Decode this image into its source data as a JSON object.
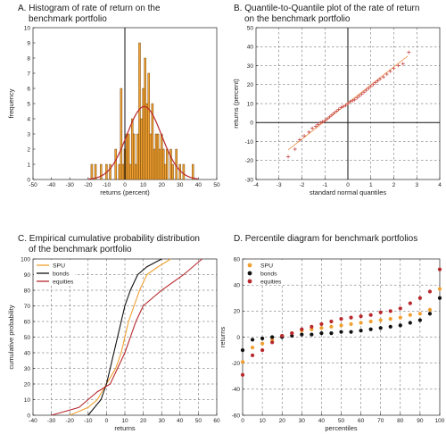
{
  "colors": {
    "bar_fill": "#f0a030",
    "bar_stroke": "#5a3200",
    "normal_curve": "#b8282d",
    "qq_marker": "#c43a3a",
    "qq_line": "#f0a060",
    "spu": "#f0a030",
    "bonds": "#111111",
    "equities": "#b8282d"
  },
  "chart_data": [
    {
      "panel": "A",
      "type": "bar",
      "title_lines": [
        "A. Histogram of rate of return on the",
        "benchmark portfolio"
      ],
      "xlabel": "returns (percent)",
      "ylabel": "frequency",
      "xlim": [
        -50,
        50
      ],
      "ylim": [
        0,
        10
      ],
      "x_ticks": [
        -50,
        -40,
        -30,
        -20,
        -10,
        0,
        10,
        20,
        30,
        40,
        50
      ],
      "y_ticks": [
        0,
        1,
        2,
        3,
        4,
        5,
        6,
        7,
        8,
        9,
        10
      ],
      "grid": false,
      "bins": [
        {
          "x": -18,
          "count": 1
        },
        {
          "x": -16,
          "count": 1
        },
        {
          "x": -13,
          "count": 1
        },
        {
          "x": -10,
          "count": 1
        },
        {
          "x": -8,
          "count": 1
        },
        {
          "x": -5,
          "count": 2
        },
        {
          "x": -3,
          "count": 1
        },
        {
          "x": -2,
          "count": 6
        },
        {
          "x": -1,
          "count": 1
        },
        {
          "x": 0,
          "count": 2
        },
        {
          "x": 1,
          "count": 3
        },
        {
          "x": 2,
          "count": 3
        },
        {
          "x": 3,
          "count": 1
        },
        {
          "x": 4,
          "count": 4
        },
        {
          "x": 5,
          "count": 3
        },
        {
          "x": 6,
          "count": 1
        },
        {
          "x": 7,
          "count": 3
        },
        {
          "x": 8,
          "count": 9
        },
        {
          "x": 9,
          "count": 4
        },
        {
          "x": 10,
          "count": 6
        },
        {
          "x": 11,
          "count": 8
        },
        {
          "x": 12,
          "count": 5
        },
        {
          "x": 13,
          "count": 7
        },
        {
          "x": 14,
          "count": 3
        },
        {
          "x": 15,
          "count": 5
        },
        {
          "x": 16,
          "count": 2
        },
        {
          "x": 17,
          "count": 3
        },
        {
          "x": 18,
          "count": 3
        },
        {
          "x": 19,
          "count": 2
        },
        {
          "x": 20,
          "count": 3
        },
        {
          "x": 21,
          "count": 2
        },
        {
          "x": 22,
          "count": 1
        },
        {
          "x": 23,
          "count": 2
        },
        {
          "x": 25,
          "count": 2
        },
        {
          "x": 26,
          "count": 1
        },
        {
          "x": 28,
          "count": 2
        },
        {
          "x": 30,
          "count": 1
        },
        {
          "x": 32,
          "count": 1
        },
        {
          "x": 37,
          "count": 1
        }
      ],
      "normal_fit": {
        "mean": 10.5,
        "sd": 9.5,
        "peak": 4.8,
        "x_range": [
          -20,
          40
        ]
      }
    },
    {
      "panel": "B",
      "type": "scatter",
      "title_lines": [
        "B. Quantile-to-Quantile plot of the rate of return",
        "on the benchmark portfolio"
      ],
      "xlabel": "standard normal quantiles",
      "ylabel": "returns (percent)",
      "xlim": [
        -4,
        4
      ],
      "ylim": [
        -30,
        50
      ],
      "x_ticks": [
        -4,
        -3,
        -2,
        -1,
        0,
        1,
        2,
        3,
        4
      ],
      "y_ticks": [
        -30,
        -20,
        -10,
        0,
        10,
        20,
        30,
        40,
        50
      ],
      "grid": true,
      "reference_line": {
        "intercept": 10.3,
        "slope": 9.5,
        "x_range": [
          -2.6,
          2.6
        ]
      },
      "points": [
        [
          -2.6,
          -18
        ],
        [
          -2.3,
          -14
        ],
        [
          -2.1,
          -9
        ],
        [
          -1.9,
          -7
        ],
        [
          -1.7,
          -5
        ],
        [
          -1.55,
          -3
        ],
        [
          -1.4,
          -2
        ],
        [
          -1.3,
          -1
        ],
        [
          -1.2,
          0
        ],
        [
          -1.1,
          0.5
        ],
        [
          -1.0,
          1
        ],
        [
          -0.9,
          2
        ],
        [
          -0.8,
          3
        ],
        [
          -0.7,
          4
        ],
        [
          -0.6,
          5
        ],
        [
          -0.5,
          6
        ],
        [
          -0.4,
          7
        ],
        [
          -0.3,
          8
        ],
        [
          -0.2,
          8.5
        ],
        [
          -0.1,
          9
        ],
        [
          0.0,
          10
        ],
        [
          0.1,
          11
        ],
        [
          0.2,
          11.5
        ],
        [
          0.3,
          12
        ],
        [
          0.4,
          13
        ],
        [
          0.5,
          14
        ],
        [
          0.6,
          15
        ],
        [
          0.7,
          16
        ],
        [
          0.8,
          17
        ],
        [
          0.9,
          18
        ],
        [
          1.0,
          19
        ],
        [
          1.1,
          20
        ],
        [
          1.2,
          21
        ],
        [
          1.3,
          22
        ],
        [
          1.4,
          23
        ],
        [
          1.55,
          24
        ],
        [
          1.7,
          25.5
        ],
        [
          1.85,
          27
        ],
        [
          2.0,
          28.5
        ],
        [
          2.2,
          30
        ],
        [
          2.4,
          31
        ],
        [
          2.65,
          37
        ]
      ]
    },
    {
      "panel": "C",
      "type": "line",
      "title_lines": [
        "C. Empirical cumulative probability distribution",
        "of the benchmark portfolio"
      ],
      "xlabel": "returns",
      "ylabel": "cumulative probability",
      "xlim": [
        -40,
        60
      ],
      "ylim": [
        0,
        100
      ],
      "x_ticks": [
        -40,
        -30,
        -20,
        -10,
        0,
        10,
        20,
        30,
        40,
        50,
        60
      ],
      "y_ticks": [
        0,
        10,
        20,
        30,
        40,
        50,
        60,
        70,
        80,
        90,
        100
      ],
      "grid": true,
      "legend_position": "top-left",
      "series": [
        {
          "name": "SPU",
          "color_key": "spu",
          "x": [
            -20,
            -10,
            -5,
            0,
            5,
            8,
            10,
            12,
            15,
            18,
            22,
            28,
            35
          ],
          "y": [
            0,
            5,
            10,
            20,
            30,
            40,
            50,
            60,
            70,
            80,
            90,
            95,
            100
          ]
        },
        {
          "name": "bonds",
          "color_key": "bonds",
          "x": [
            -10,
            -3,
            0,
            2,
            4,
            6,
            8,
            10,
            13,
            17,
            22,
            30
          ],
          "y": [
            0,
            10,
            20,
            30,
            40,
            50,
            60,
            70,
            80,
            90,
            95,
            100
          ]
        },
        {
          "name": "equities",
          "color_key": "equities",
          "x": [
            -30,
            -15,
            -10,
            -5,
            2,
            6,
            10,
            13,
            16,
            20,
            30,
            42,
            52
          ],
          "y": [
            0,
            5,
            10,
            15,
            20,
            30,
            40,
            50,
            60,
            70,
            80,
            90,
            100
          ]
        }
      ]
    },
    {
      "panel": "D",
      "type": "scatter",
      "title_lines": [
        "D. Percentile diagram for benchmark portfolios"
      ],
      "xlabel": "percentiles",
      "ylabel": "returns",
      "xlim": [
        0,
        100
      ],
      "ylim": [
        -60,
        60
      ],
      "x_ticks": [
        0,
        10,
        20,
        30,
        40,
        50,
        60,
        70,
        80,
        90,
        100
      ],
      "y_ticks": [
        -60,
        -40,
        -20,
        0,
        20,
        40,
        60
      ],
      "grid": true,
      "legend_position": "top-left",
      "series": [
        {
          "name": "SPU",
          "color_key": "spu",
          "x": [
            0,
            5,
            10,
            15,
            20,
            25,
            30,
            35,
            40,
            45,
            50,
            55,
            60,
            65,
            70,
            75,
            80,
            85,
            90,
            95,
            100
          ],
          "y": [
            -19,
            -8,
            -5,
            -2,
            1,
            3,
            5,
            6,
            7,
            8,
            9,
            10,
            11,
            12,
            13,
            14,
            15,
            17,
            18,
            21,
            37
          ]
        },
        {
          "name": "bonds",
          "color_key": "bonds",
          "x": [
            0,
            5,
            10,
            15,
            20,
            25,
            30,
            35,
            40,
            45,
            50,
            55,
            60,
            65,
            70,
            75,
            80,
            85,
            90,
            95,
            100
          ],
          "y": [
            -10,
            -2,
            -1,
            0,
            0,
            1,
            2,
            2,
            3,
            3,
            4,
            4,
            5,
            6,
            7,
            8,
            9,
            11,
            13,
            18,
            30
          ]
        },
        {
          "name": "equities",
          "color_key": "equities",
          "x": [
            0,
            5,
            10,
            15,
            20,
            25,
            30,
            35,
            40,
            45,
            50,
            55,
            60,
            65,
            70,
            75,
            80,
            85,
            90,
            95,
            100
          ],
          "y": [
            -29,
            -14,
            -10,
            -4,
            1,
            3,
            6,
            8,
            10,
            12,
            14,
            15,
            16,
            17,
            19,
            20,
            22,
            26,
            30,
            35,
            52
          ]
        }
      ]
    }
  ]
}
